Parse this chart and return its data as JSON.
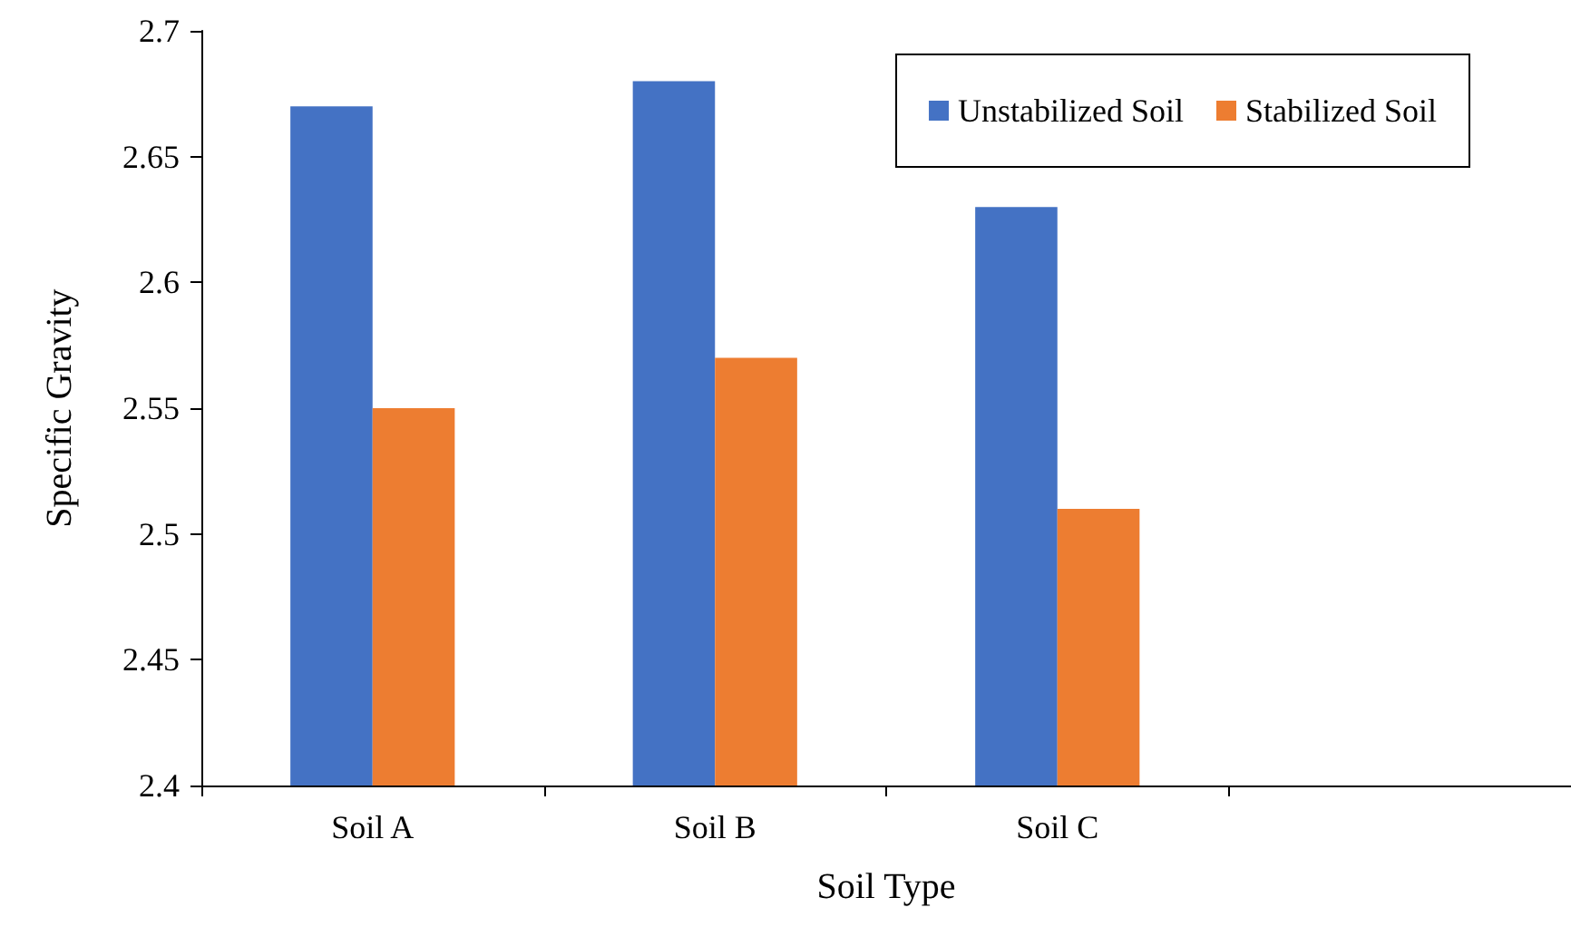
{
  "chart_data": {
    "type": "bar",
    "xlabel": "Soil Type",
    "ylabel": "Specific Gravity",
    "categories": [
      "Soil A",
      "Soil B",
      "Soil C",
      null
    ],
    "series": [
      {
        "name": "Unstabilized Soil",
        "color": "#4472c4",
        "values": [
          2.67,
          2.68,
          2.63,
          null
        ]
      },
      {
        "name": "Stabilized Soil",
        "color": "#ed7d31",
        "values": [
          2.55,
          2.57,
          2.51,
          null
        ]
      }
    ],
    "ylim": [
      2.4,
      2.7
    ],
    "yticks": [
      2.4,
      2.45,
      2.5,
      2.55,
      2.6,
      2.65,
      2.7
    ],
    "grid": false,
    "legend": "top right"
  }
}
